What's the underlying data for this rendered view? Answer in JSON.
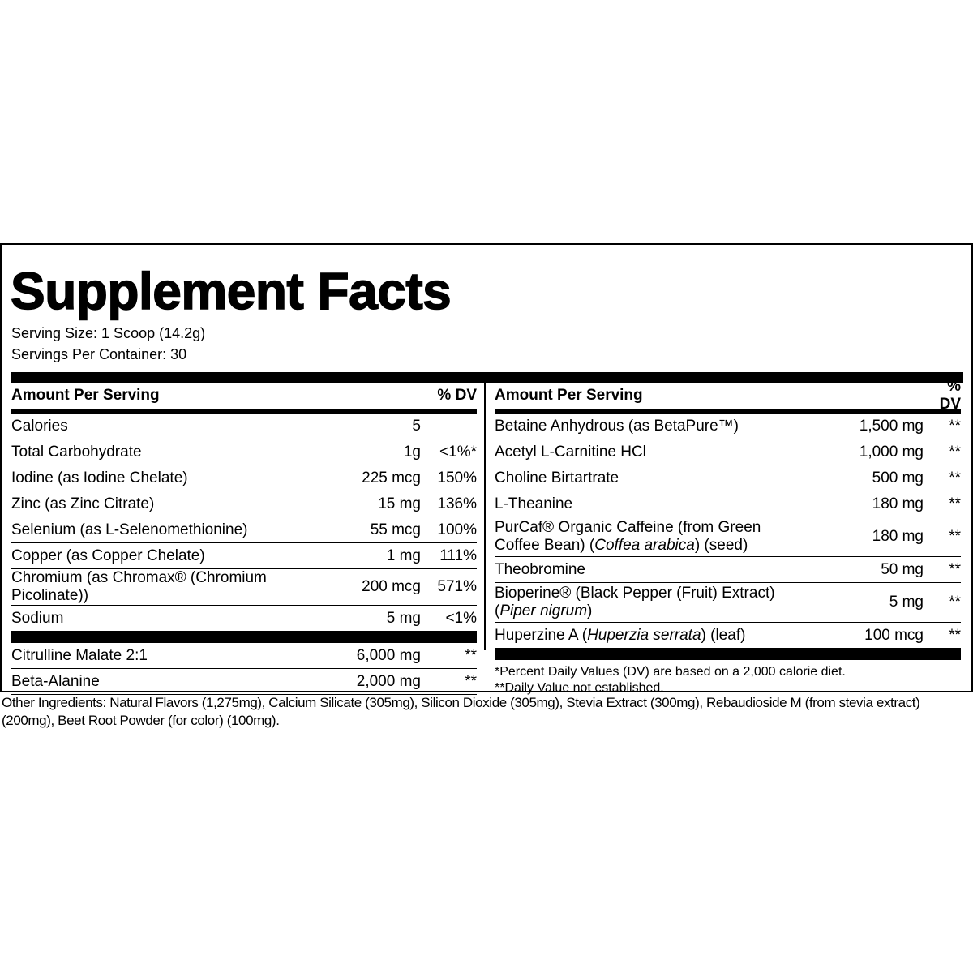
{
  "title": "Supplement Facts",
  "serving_size": "Serving Size: 1 Scoop (14.2g)",
  "servings_per_container": "Servings Per Container: 30",
  "left": {
    "header": {
      "amount": "Amount Per Serving",
      "dv": "% DV"
    },
    "rows": [
      [
        "Calories",
        "5"
      ],
      [
        "Total Carbohydrate",
        "1g",
        "<1%*"
      ],
      [
        "Iodine (as Iodine Chelate)",
        "225 mcg",
        "150%"
      ],
      [
        "Zinc (as Zinc Citrate)",
        "15 mg",
        "136%"
      ],
      [
        "Selenium (as L-Selenomethionine)",
        "55 mcg",
        "100%"
      ],
      [
        "Copper (as Copper Chelate)",
        "1 mg",
        "111%"
      ],
      [
        "Chromium (as Chromax® (Chromium Picolinate))",
        "200 mcg",
        "571%"
      ],
      [
        "Sodium",
        "5 mg",
        "<1%"
      ]
    ],
    "rows_2": [
      [
        "Citrulline Malate 2:1",
        "6,000 mg",
        "**"
      ],
      [
        "Beta-Alanine",
        "2,000 mg",
        "**"
      ]
    ]
  },
  "right": {
    "header": {
      "amount": "Amount Per Serving",
      "dv": "% DV"
    },
    "rows": [
      [
        "Betaine Anhydrous (as BetaPure™)",
        "1,500 mg",
        "**"
      ],
      [
        "Acetyl L-Carnitine HCl",
        "1,000 mg",
        "**"
      ],
      [
        "Choline Birtartrate",
        "500 mg",
        "**"
      ],
      [
        "L-Theanine",
        "180 mg",
        "**"
      ],
      [
        [
          "PurCaf® Organic Caffeine (from Green Coffee Bean) (",
          "Coffea arabica",
          ") (seed)"
        ],
        "180 mg",
        "**"
      ],
      [
        "Theobromine",
        "50 mg",
        "**"
      ],
      [
        [
          "Bioperine® (Black Pepper (Fruit) Extract) (",
          "Piper nigrum",
          ")"
        ],
        "5 mg",
        "**"
      ],
      [
        [
          "Huperzine A (",
          "Huperzia serrata",
          ") (leaf)"
        ],
        "100 mcg",
        "**"
      ]
    ],
    "footnotes": [
      "*Percent Daily Values (DV) are based on a 2,000 calorie diet.",
      "**Daily Value not established."
    ]
  },
  "other_ingredients": "Other Ingredients: Natural Flavors (1,275mg), Calcium Silicate (305mg), Silicon Dioxide (305mg), Stevia Extract (300mg), Rebaudioside M (from stevia extract) (200mg), Beet Root Powder (for color) (100mg)."
}
